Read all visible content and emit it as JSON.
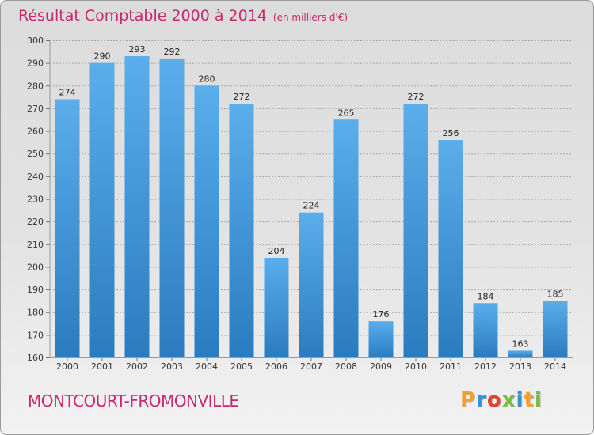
{
  "title": "Résultat Comptable 2000 à 2014",
  "title_unit": "(en milliers d'€)",
  "commune": "MONTCOURT-FROMONVILLE",
  "logo": {
    "letters": [
      "P",
      "r",
      "o",
      "x",
      "i",
      "t",
      "i"
    ],
    "colors": [
      "#f2a12a",
      "#3b8fd6",
      "#e2432f",
      "#7bbd3a",
      "#3b8fd6",
      "#f2a12a",
      "#7bbd3a"
    ]
  },
  "colors": {
    "bar_light": "#5aaeea",
    "bar_dark": "#2a7cc0",
    "title": "#c8286e"
  },
  "chart_data": {
    "type": "bar",
    "categories": [
      "2000",
      "2001",
      "2002",
      "2003",
      "2004",
      "2005",
      "2006",
      "2007",
      "2008",
      "2009",
      "2010",
      "2011",
      "2012",
      "2013",
      "2014"
    ],
    "values": [
      274,
      290,
      293,
      292,
      280,
      272,
      204,
      224,
      265,
      176,
      272,
      256,
      184,
      163,
      185
    ],
    "ylim": [
      160,
      300
    ],
    "yticks": [
      160,
      170,
      180,
      190,
      200,
      210,
      220,
      230,
      240,
      250,
      260,
      270,
      280,
      290,
      300
    ],
    "grid": true
  }
}
